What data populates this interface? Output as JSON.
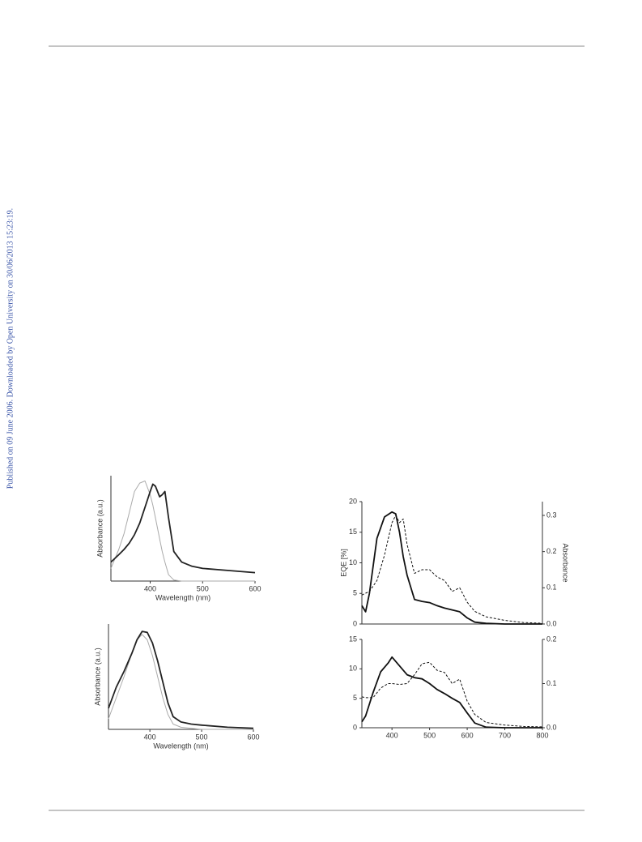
{
  "sidebar": "Published on 09 June 2006. Downloaded by Open University on 30/06/2013 15:23:19.",
  "chart_data": [
    {
      "type": "line",
      "x_label": "Wavelength  (nm)",
      "y_label": "Absorbance (a.u.)",
      "xlim": [
        325,
        600
      ],
      "xticks": [
        400,
        500,
        600
      ],
      "ylim": [
        0,
        1
      ],
      "x": [
        325,
        340,
        350,
        360,
        370,
        380,
        390,
        400,
        405,
        410,
        418,
        423,
        428,
        435,
        445,
        460,
        480,
        500,
        550,
        600
      ],
      "series": [
        {
          "color": "#aaaaaa",
          "style": "solid",
          "values": [
            0.12,
            0.3,
            0.45,
            0.65,
            0.85,
            0.93,
            0.95,
            0.82,
            0.72,
            0.6,
            0.4,
            0.28,
            0.18,
            0.06,
            0.01,
            0,
            0,
            0,
            0,
            0
          ]
        },
        {
          "color": "#222222",
          "style": "solid",
          "values": [
            0.18,
            0.25,
            0.3,
            0.36,
            0.44,
            0.55,
            0.7,
            0.85,
            0.92,
            0.9,
            0.8,
            0.82,
            0.85,
            0.6,
            0.28,
            0.18,
            0.14,
            0.12,
            0.1,
            0.08
          ]
        }
      ]
    },
    {
      "type": "line",
      "x_label": "Wavelength (nm)",
      "y_label": "Absorbance (a.u.)",
      "xlim": [
        320,
        600
      ],
      "xticks": [
        400,
        500,
        600
      ],
      "ylim": [
        0,
        1
      ],
      "x": [
        320,
        335,
        350,
        365,
        375,
        385,
        395,
        405,
        415,
        425,
        435,
        445,
        460,
        480,
        500,
        550,
        600
      ],
      "series": [
        {
          "color": "#aaaaaa",
          "style": "solid",
          "values": [
            0.1,
            0.3,
            0.5,
            0.72,
            0.85,
            0.9,
            0.85,
            0.7,
            0.5,
            0.3,
            0.14,
            0.05,
            0.02,
            0.01,
            0,
            0,
            0
          ]
        },
        {
          "color": "#222222",
          "style": "solid",
          "values": [
            0.2,
            0.4,
            0.55,
            0.72,
            0.85,
            0.93,
            0.92,
            0.82,
            0.65,
            0.45,
            0.25,
            0.12,
            0.07,
            0.05,
            0.04,
            0.02,
            0.01
          ]
        }
      ]
    },
    {
      "type": "line",
      "y_label": "EQE [%]",
      "y2_label": "Absorbance",
      "xlim": [
        320,
        800
      ],
      "ylim": [
        0,
        20
      ],
      "yticks": [
        0,
        5,
        10,
        15,
        20
      ],
      "y2lim": [
        0,
        0.338
      ],
      "y2ticks": [
        {
          "value": 0,
          "label": "0.0"
        },
        0.1,
        0.2,
        0.3
      ],
      "x": [
        320,
        330,
        340,
        360,
        380,
        400,
        410,
        420,
        430,
        440,
        460,
        480,
        500,
        520,
        540,
        560,
        580,
        600,
        620,
        650,
        700,
        750,
        800
      ],
      "series": [
        {
          "color": "#111111",
          "style": "solid",
          "values": [
            3,
            2,
            5,
            14,
            17.5,
            18.3,
            18,
            15,
            11,
            8,
            4,
            3.7,
            3.5,
            3,
            2.6,
            2.3,
            2,
            1,
            0.3,
            0.1,
            0,
            0,
            0
          ]
        },
        {
          "color": "#111111",
          "style": "dashed",
          "axis": "y2",
          "values": [
            0.08,
            0.085,
            0.09,
            0.12,
            0.19,
            0.28,
            0.3,
            0.28,
            0.29,
            0.22,
            0.14,
            0.15,
            0.15,
            0.13,
            0.12,
            0.09,
            0.1,
            0.06,
            0.035,
            0.02,
            0.01,
            0.004,
            0.002
          ]
        }
      ]
    },
    {
      "type": "line",
      "xlim": [
        320,
        800
      ],
      "xticks": [
        400,
        500,
        600,
        700,
        800
      ],
      "ylim": [
        0,
        15
      ],
      "yticks": [
        0,
        5,
        10,
        15
      ],
      "y2lim": [
        0,
        0.2
      ],
      "y2ticks": [
        {
          "value": 0,
          "label": "0.0"
        },
        0.1,
        0.2
      ],
      "x": [
        320,
        330,
        350,
        370,
        390,
        400,
        420,
        440,
        460,
        480,
        500,
        520,
        540,
        560,
        580,
        600,
        620,
        650,
        700,
        750,
        800
      ],
      "series": [
        {
          "color": "#111111",
          "style": "solid",
          "values": [
            1,
            2,
            6,
            9.5,
            11,
            12,
            10.5,
            9,
            8.5,
            8.3,
            7.5,
            6.5,
            5.8,
            5,
            4.3,
            2.5,
            0.8,
            0.1,
            0,
            0,
            0
          ]
        },
        {
          "color": "#111111",
          "style": "dashed",
          "axis": "y2",
          "values": [
            0.07,
            0.068,
            0.068,
            0.09,
            0.1,
            0.1,
            0.098,
            0.1,
            0.12,
            0.145,
            0.148,
            0.13,
            0.125,
            0.1,
            0.11,
            0.06,
            0.03,
            0.012,
            0.006,
            0.003,
            0.002
          ]
        }
      ]
    }
  ]
}
